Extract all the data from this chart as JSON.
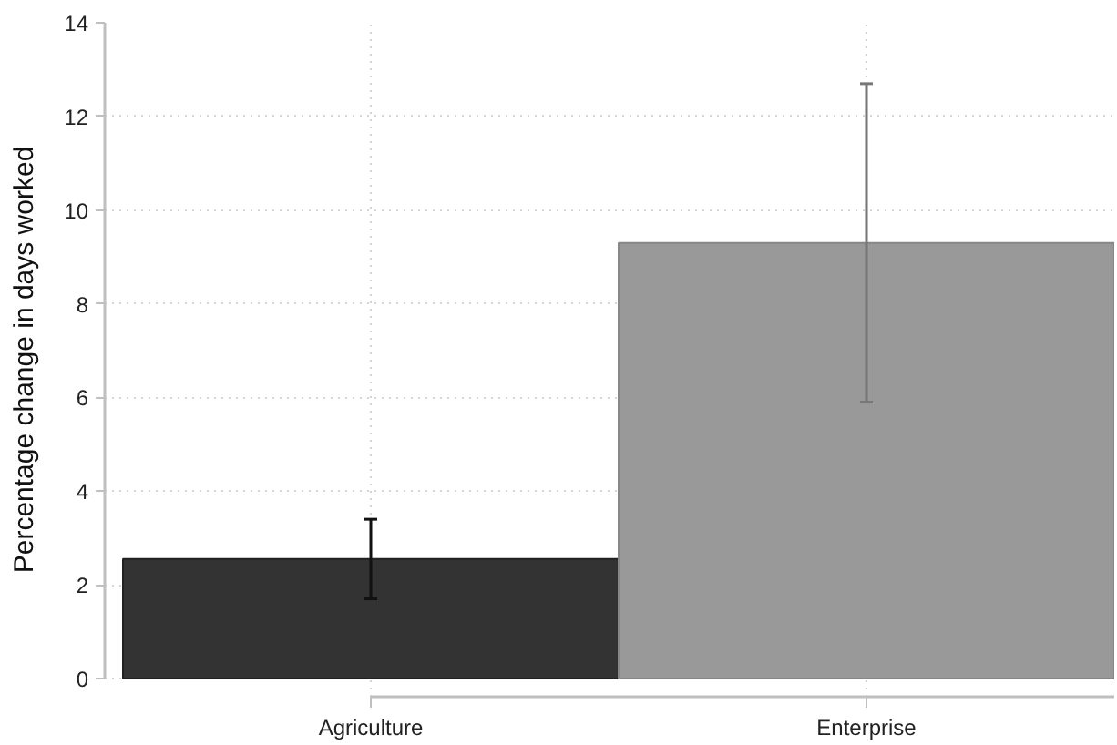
{
  "chart_data": {
    "type": "bar",
    "ylabel": "Percentage change in days worked",
    "categories": [
      "Agriculture",
      "Enterprise"
    ],
    "values": [
      2.55,
      9.3
    ],
    "colors": [
      "#333333",
      "#999999"
    ],
    "errors": [
      [
        1.7,
        3.4
      ],
      [
        5.9,
        12.7
      ]
    ],
    "ylim": [
      0,
      14
    ],
    "yticks": [
      0,
      2,
      4,
      6,
      8,
      10,
      12,
      14
    ],
    "grid": true
  }
}
